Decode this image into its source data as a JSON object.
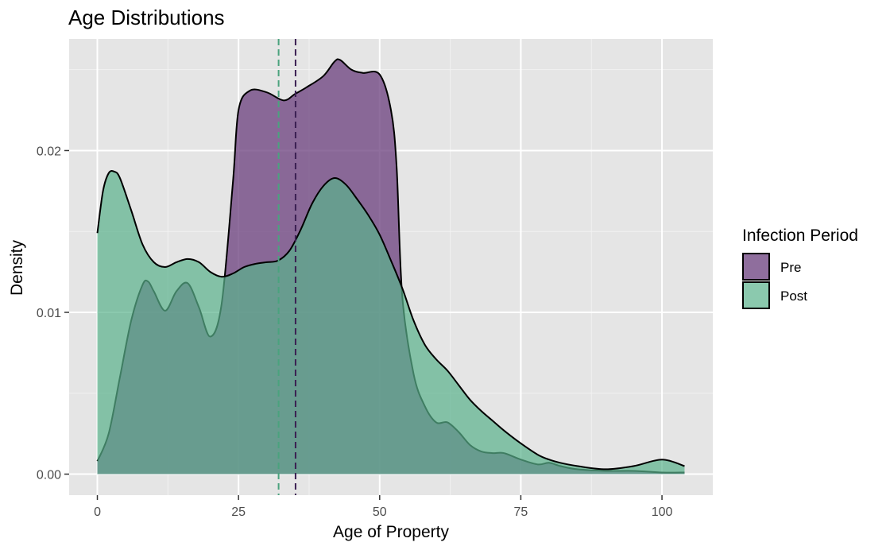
{
  "chart_data": {
    "type": "area",
    "title": "Age Distributions",
    "xlabel": "Age of Property",
    "ylabel": "Density",
    "xlim": [
      -5,
      109
    ],
    "ylim": [
      -0.0013,
      0.0269
    ],
    "x_ticks": [
      0,
      25,
      50,
      75,
      100
    ],
    "x_tick_labels": [
      "0",
      "25",
      "50",
      "75",
      "100"
    ],
    "y_ticks": [
      0,
      0.01,
      0.02
    ],
    "y_tick_labels": [
      "0.00",
      "0.01",
      "0.02"
    ],
    "grid": true,
    "panel_background": "#e5e5e5",
    "legend": {
      "title": "Infection Period",
      "position": "right",
      "entries": [
        "Pre",
        "Post"
      ]
    },
    "series": [
      {
        "name": "Pre",
        "color": "#6a3d7c",
        "fill_opacity": 0.75,
        "mean_line": 35.1,
        "mean_line_color": "#3b1f52",
        "x": [
          0,
          2,
          4,
          6,
          8,
          9,
          10,
          12,
          14,
          16,
          18,
          20,
          22,
          24,
          25,
          27,
          30,
          33,
          35,
          37,
          40,
          42,
          43,
          45,
          47,
          50,
          52,
          53,
          54,
          56,
          58,
          60,
          62,
          64,
          66,
          68,
          70,
          72,
          75,
          78,
          80,
          82,
          85,
          90,
          95,
          100,
          104
        ],
        "values": [
          0.0008,
          0.0025,
          0.006,
          0.0095,
          0.0117,
          0.0119,
          0.0113,
          0.0101,
          0.0113,
          0.0118,
          0.0103,
          0.0085,
          0.0105,
          0.018,
          0.0225,
          0.0237,
          0.0236,
          0.0231,
          0.0235,
          0.0239,
          0.0246,
          0.0255,
          0.0256,
          0.025,
          0.0248,
          0.0247,
          0.0225,
          0.019,
          0.011,
          0.0062,
          0.0042,
          0.0032,
          0.0032,
          0.0026,
          0.0018,
          0.0014,
          0.0013,
          0.0013,
          0.0009,
          0.0006,
          0.0007,
          0.0005,
          0.0003,
          0.0002,
          0.0002,
          0.0001,
          0.0001
        ]
      },
      {
        "name": "Post",
        "color": "#5ab28b",
        "fill_opacity": 0.7,
        "mean_line": 32.1,
        "mean_line_color": "#4aa37e",
        "x": [
          0,
          1,
          2,
          3,
          4,
          6,
          8,
          10,
          12,
          14,
          16,
          18,
          20,
          22,
          24,
          26,
          28,
          30,
          32,
          34,
          36,
          38,
          40,
          42,
          44,
          46,
          48,
          50,
          52,
          54,
          56,
          58,
          60,
          62,
          64,
          66,
          68,
          70,
          72,
          75,
          78,
          80,
          82,
          85,
          90,
          95,
          100,
          104
        ],
        "values": [
          0.0149,
          0.0175,
          0.0186,
          0.0187,
          0.0183,
          0.0163,
          0.0142,
          0.0131,
          0.0128,
          0.0131,
          0.0133,
          0.0131,
          0.0125,
          0.0122,
          0.0124,
          0.0128,
          0.013,
          0.0131,
          0.0132,
          0.0138,
          0.0151,
          0.0167,
          0.0178,
          0.0183,
          0.0179,
          0.017,
          0.016,
          0.0148,
          0.0132,
          0.0115,
          0.0095,
          0.008,
          0.0071,
          0.0064,
          0.0055,
          0.0046,
          0.0039,
          0.0033,
          0.0027,
          0.0019,
          0.0012,
          0.0009,
          0.0007,
          0.0005,
          0.0003,
          0.0005,
          0.0009,
          0.0005
        ]
      }
    ]
  }
}
